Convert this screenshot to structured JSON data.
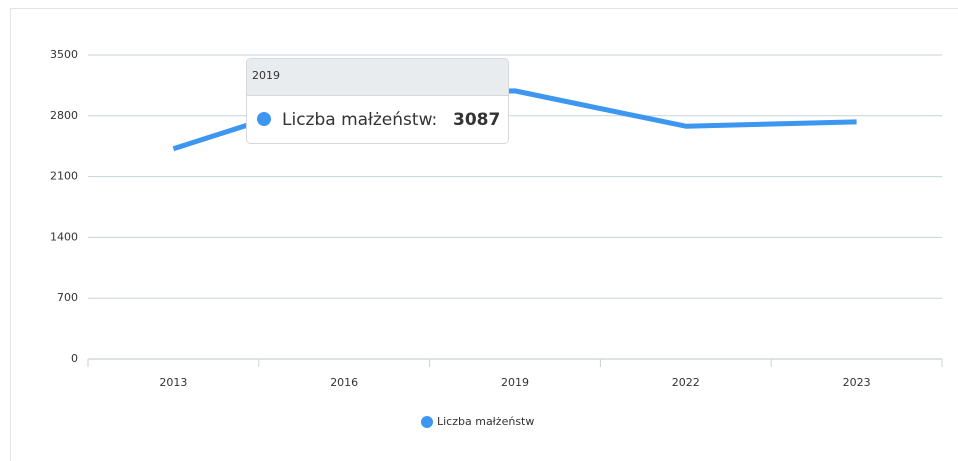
{
  "chart_data": {
    "type": "line",
    "categories": [
      "2013",
      "2016",
      "2019",
      "2022",
      "2023"
    ],
    "series": [
      {
        "name": "Liczba małżeństw",
        "color": "#3d96f0",
        "values": [
          2420,
          3050,
          3087,
          2680,
          2730
        ]
      }
    ],
    "ylim": [
      0,
      3500
    ],
    "yticks": [
      0,
      700,
      1400,
      2100,
      2800,
      3500
    ],
    "grid": true,
    "legend": "bottom",
    "tooltip": {
      "label": "Liczba małżeństw:"
    }
  }
}
